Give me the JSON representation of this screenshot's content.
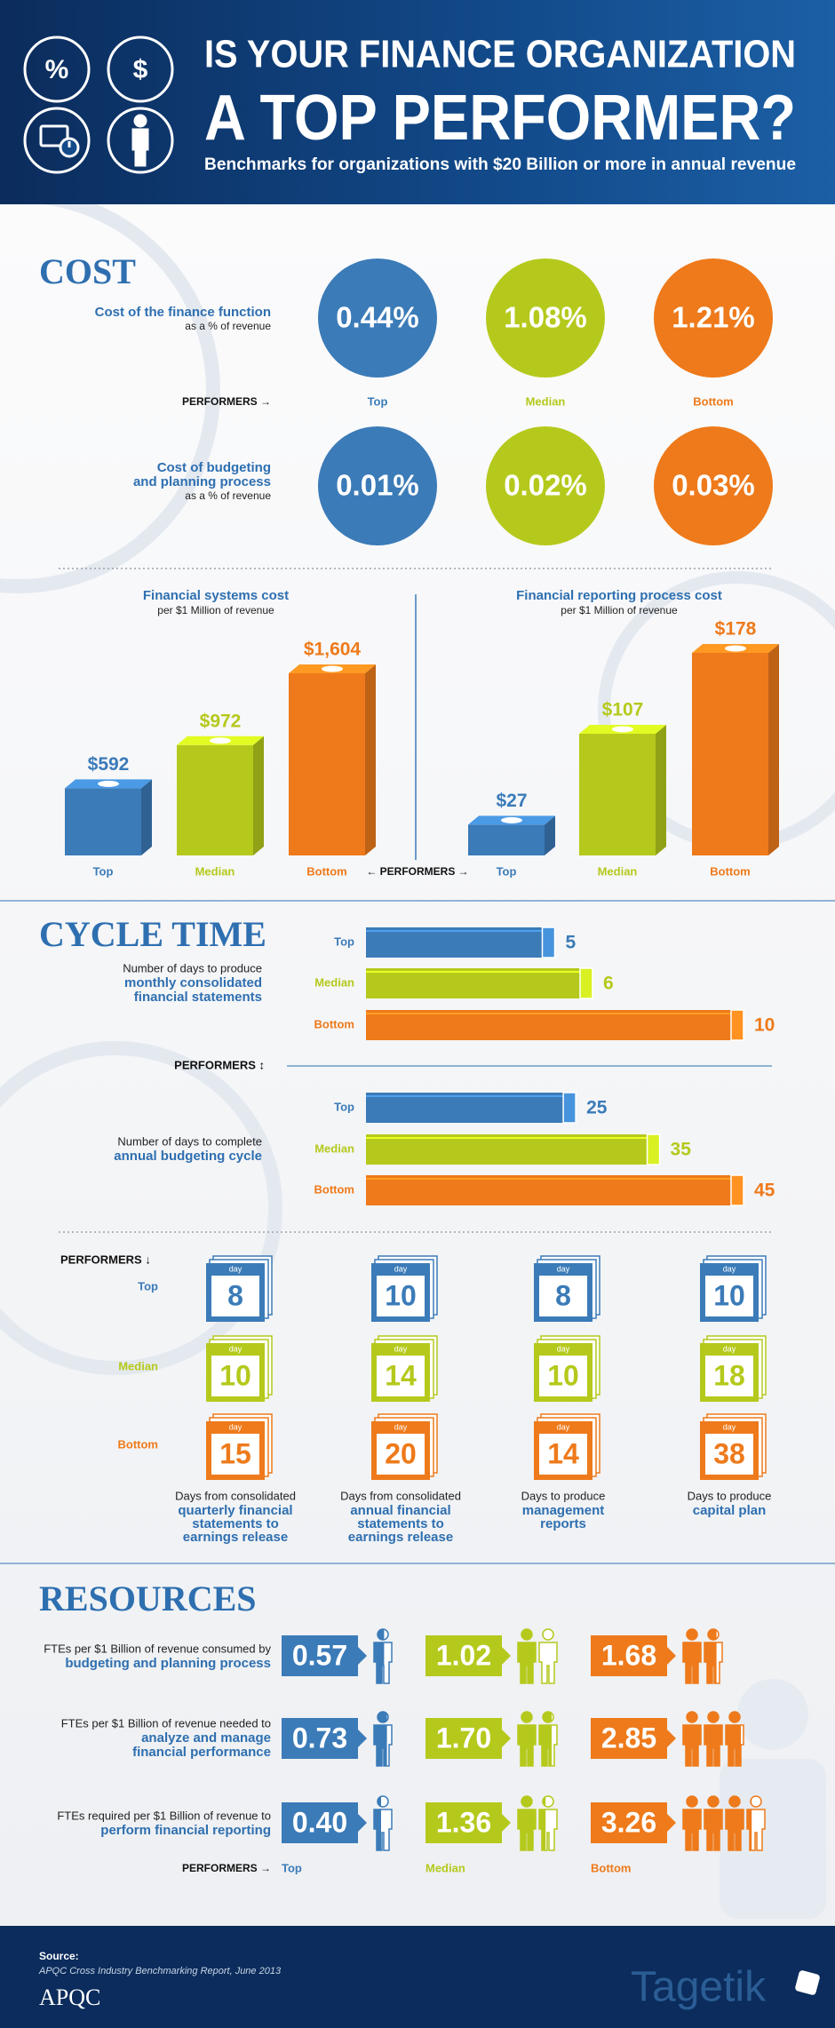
{
  "header": {
    "icons": [
      "%",
      "$"
    ],
    "title_lines": [
      "IS YOUR FINANCE ORGANIZATION",
      "A TOP PERFORMER?"
    ],
    "subtitle": "Benchmarks for organizations with $20 Billion or more in annual revenue"
  },
  "levels": [
    "Top",
    "Median",
    "Bottom"
  ],
  "colors": [
    "#3b7bb8",
    "#b5c91c",
    "#ee7a1b"
  ],
  "cost": {
    "title": "COST",
    "performers": "PERFORMERS →",
    "metrics": [
      {
        "label_lines": [
          "Cost of the finance function"
        ],
        "sublabel": "as a % of revenue",
        "values": [
          "0.44%",
          "1.08%",
          "1.21%"
        ]
      },
      {
        "label_lines": [
          "Cost of budgeting",
          "and planning process"
        ],
        "sublabel": "as a % of revenue",
        "values": [
          "0.01%",
          "0.02%",
          "0.03%"
        ]
      }
    ],
    "charts": [
      {
        "title": "Financial systems cost",
        "subtitle": "per $1 Million of revenue",
        "values": [
          592,
          972,
          1604
        ],
        "value_labels": [
          "$592",
          "$972",
          "$1,604"
        ]
      },
      {
        "title": "Financial reporting process cost",
        "subtitle": "per $1 Million of revenue",
        "values": [
          27,
          107,
          178
        ],
        "value_labels": [
          "$27",
          "$107",
          "$178"
        ]
      }
    ],
    "charts_performers": "← PERFORMERS →"
  },
  "cycle_time": {
    "title": "CYCLE TIME",
    "performers": "PERFORMERS ↕",
    "metrics": [
      {
        "lead": "Number of days to produce",
        "bold_lines": [
          "monthly consolidated",
          "financial statements"
        ],
        "values": [
          5,
          6,
          10
        ]
      },
      {
        "lead": "Number of days to complete",
        "bold_lines": [
          "annual budgeting cycle"
        ],
        "values": [
          25,
          35,
          45
        ]
      }
    ],
    "calendar": {
      "performers": "PERFORMERS ↓",
      "day": "day",
      "columns": [
        {
          "lead": "Days from consolidated",
          "bold_lines": [
            "quarterly financial",
            "statements to",
            "earnings release"
          ],
          "values": [
            8,
            10,
            15
          ]
        },
        {
          "lead": "Days from consolidated",
          "bold_lines": [
            "annual financial",
            "statements to",
            "earnings release"
          ],
          "values": [
            10,
            14,
            20
          ]
        },
        {
          "lead": "Days to produce",
          "bold_lines": [
            "management",
            "reports"
          ],
          "values": [
            8,
            10,
            14
          ]
        },
        {
          "lead": "Days to produce",
          "bold_lines": [
            "capital plan"
          ],
          "values": [
            10,
            18,
            38
          ]
        }
      ]
    }
  },
  "resources": {
    "title": "RESOURCES",
    "performers": "PERFORMERS →",
    "metrics": [
      {
        "lead": "FTEs per $1 Billion of revenue consumed by",
        "bold_lines": [
          "budgeting and planning process"
        ],
        "values": [
          0.57,
          1.02,
          1.68
        ],
        "value_labels": [
          "0.57",
          "1.02",
          "1.68"
        ]
      },
      {
        "lead": "FTEs per $1 Billion of revenue needed to",
        "bold_lines": [
          "analyze and manage",
          "financial performance"
        ],
        "values": [
          0.73,
          1.7,
          2.85
        ],
        "value_labels": [
          "0.73",
          "1.70",
          "2.85"
        ]
      },
      {
        "lead": "FTEs required per $1 Billion of revenue to",
        "bold_lines": [
          "perform financial reporting"
        ],
        "values": [
          0.4,
          1.36,
          3.26
        ],
        "value_labels": [
          "0.40",
          "1.36",
          "3.26"
        ]
      }
    ]
  },
  "footer": {
    "source_label": "Source:",
    "source": "APQC Cross Industry Benchmarking Report, June 2013",
    "logos": [
      "APQC",
      "Tagetik"
    ]
  }
}
